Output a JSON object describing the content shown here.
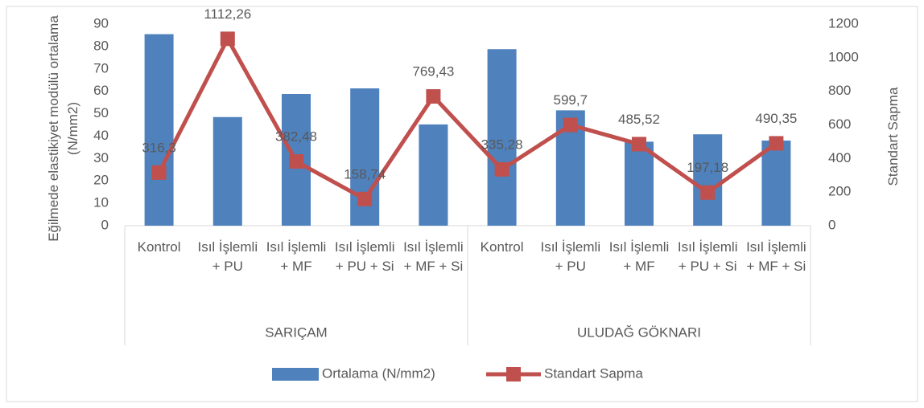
{
  "chart_data": {
    "type": "bar-line",
    "categories": [
      "Kontrol",
      "Isıl İşlemli + PU",
      "Isıl İşlemli + MF",
      "Isıl İşlemli + PU + Si",
      "Isıl İşlemli + MF + Si",
      "Kontrol",
      "Isıl İşlemli + PU",
      "Isıl İşlemli + MF",
      "Isıl İşlemli + PU + Si",
      "Isıl İşlemli + MF + Si"
    ],
    "groups": [
      "SARIÇAM",
      "ULUDAĞ GÖKNARI"
    ],
    "y_label": "Eğilmede  elastikiyet modülü ortalama (N/mm2)",
    "y2_label": "Standart Sapma",
    "ylim": [
      0,
      90
    ],
    "yticks": [
      0,
      10,
      20,
      30,
      40,
      50,
      60,
      70,
      80,
      90
    ],
    "y2lim": [
      0,
      1200
    ],
    "y2ticks": [
      0,
      200,
      400,
      600,
      800,
      1000,
      1200
    ],
    "series": [
      {
        "name": "Ortalama (N/mm2)",
        "type": "bar",
        "color": "#4f81bd",
        "values": [
          85.5,
          48.5,
          58.8,
          61.3,
          45.2,
          78.8,
          51.5,
          37.5,
          40.8,
          38
        ]
      },
      {
        "name": "Standart Sapma",
        "type": "line",
        "axis": "y2",
        "color": "#c0504d",
        "values": [
          316.3,
          1112.26,
          382.48,
          158.74,
          769.43,
          335.28,
          599.7,
          485.52,
          197.18,
          490.35
        ],
        "value_labels": [
          "316,3",
          "1112,26",
          "382,48",
          "158,74",
          "769,43",
          "335,28",
          "599,7",
          "485,52",
          "197,18",
          "490,35"
        ]
      }
    ],
    "legend": "bottom"
  }
}
